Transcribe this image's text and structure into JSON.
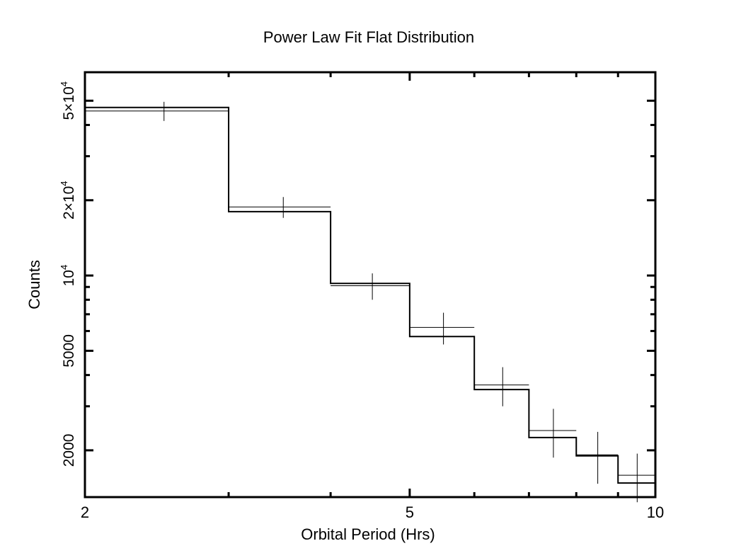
{
  "chart_data": {
    "type": "step",
    "title": "Power Law Fit Flat Distribution",
    "xlabel": "Orbital Period (Hrs)",
    "ylabel": "Counts",
    "xscale": "log",
    "yscale": "log",
    "xlim": [
      2,
      10
    ],
    "ylim": [
      1300,
      65000
    ],
    "x_ticks": [
      {
        "value": 2,
        "label": "2"
      },
      {
        "value": 5,
        "label": "5"
      },
      {
        "value": 10,
        "label": "10"
      }
    ],
    "y_ticks": [
      {
        "value": 2000,
        "label": "2000"
      },
      {
        "value": 5000,
        "label": "5000"
      },
      {
        "value": 10000,
        "label": "10",
        "exp": "4",
        "prefix": ""
      },
      {
        "value": 20000,
        "label": "2×10",
        "exp": "4",
        "prefix": "2×"
      },
      {
        "value": 50000,
        "label": "5×10",
        "exp": "4",
        "prefix": "5×"
      }
    ],
    "bin_edges": [
      2,
      3,
      4,
      5,
      6,
      7,
      8,
      9,
      10
    ],
    "series": [
      {
        "style": "model-step",
        "values": [
          47000,
          18000,
          9300,
          5700,
          3500,
          2250,
          1900,
          1480
        ]
      },
      {
        "style": "data-crosses",
        "points": [
          {
            "x": 2.5,
            "y": 45500,
            "yerr": 4000
          },
          {
            "x": 3.5,
            "y": 18800,
            "yerr": 1800
          },
          {
            "x": 4.5,
            "y": 9100,
            "yerr": 1100
          },
          {
            "x": 5.5,
            "y": 6200,
            "yerr": 900
          },
          {
            "x": 6.5,
            "y": 3650,
            "yerr": 650
          },
          {
            "x": 7.5,
            "y": 2400,
            "yerr": 530
          },
          {
            "x": 8.5,
            "y": 1920,
            "yerr": 450
          },
          {
            "x": 9.5,
            "y": 1590,
            "yerr": 350
          }
        ]
      }
    ]
  }
}
